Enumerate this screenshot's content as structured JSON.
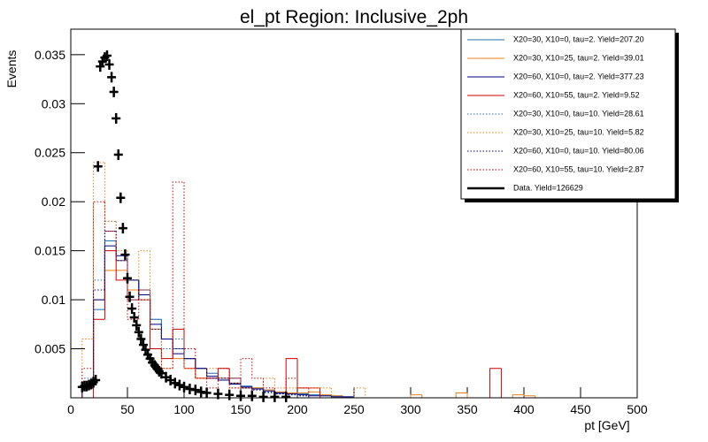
{
  "chart_data": {
    "type": "histogram",
    "title": "el_pt Region: Inclusive_2ph",
    "x_label": "pt [GeV]",
    "y_label": "Events",
    "xlim": [
      0,
      500
    ],
    "ylim": [
      0,
      0.0376
    ],
    "xticks": [
      0,
      50,
      100,
      150,
      200,
      250,
      300,
      350,
      400,
      450,
      500
    ],
    "yticks": [
      0.005,
      0.01,
      0.015,
      0.02,
      0.025,
      0.03,
      0.035
    ],
    "bins": [
      0,
      10,
      20,
      30,
      40,
      50,
      60,
      70,
      80,
      90,
      100,
      110,
      120,
      130,
      140,
      150,
      160,
      170,
      180,
      190,
      200,
      210,
      220,
      230,
      240,
      250,
      260,
      270,
      280,
      290,
      300,
      310,
      320,
      330,
      340,
      350,
      360,
      370,
      380,
      390,
      400,
      410,
      420,
      430,
      440,
      450,
      460,
      470,
      480,
      490,
      500
    ],
    "series": [
      {
        "name": "X20=30, X10=0, tau=2. Yield=207.20",
        "color": "#1f6fb0",
        "dashed": false,
        "values": [
          0,
          0.001,
          0.009,
          0.016,
          0.014,
          0.012,
          0.01,
          0.008,
          0.006,
          0.005,
          0.004,
          0.003,
          0.0025,
          0.002,
          0.0015,
          0.0012,
          0.001,
          0.0008,
          0.0006,
          0.0005,
          0.0004,
          0.0003,
          0.0002,
          0.0002,
          0.0001,
          0,
          0,
          0,
          0,
          0,
          0,
          0,
          0,
          0,
          0,
          0,
          0,
          0,
          0,
          0,
          0,
          0,
          0,
          0,
          0,
          0,
          0,
          0,
          0,
          0
        ]
      },
      {
        "name": "X20=30, X10=25, tau=2. Yield=39.01",
        "color": "#e8801a",
        "dashed": false,
        "values": [
          0,
          0.001,
          0.01,
          0.013,
          0.013,
          0.011,
          0.01,
          0.007,
          0.006,
          0.004,
          0.004,
          0.003,
          0.002,
          0.002,
          0.0015,
          0.001,
          0.001,
          0.0008,
          0.0006,
          0.0005,
          0.0005,
          0.0006,
          0.0003,
          0.0002,
          0,
          0,
          0,
          0,
          0,
          0,
          0.0003,
          0,
          0,
          0,
          0.0005,
          0,
          0,
          0,
          0,
          0.0003,
          0.0002,
          0,
          0,
          0,
          0,
          0,
          0,
          0,
          0,
          0
        ]
      },
      {
        "name": "X20=60, X10=0, tau=2. Yield=377.23",
        "color": "#000080",
        "dashed": false,
        "values": [
          0,
          0.001,
          0.01,
          0.0155,
          0.0145,
          0.012,
          0.0105,
          0.0075,
          0.006,
          0.0045,
          0.004,
          0.003,
          0.0022,
          0.0018,
          0.0014,
          0.0011,
          0.0009,
          0.0007,
          0.0005,
          0.0004,
          0.0003,
          0.0002,
          0.0002,
          0.0001,
          0.0001,
          0,
          0,
          0,
          0,
          0,
          0,
          0,
          0,
          0,
          0,
          0,
          0,
          0,
          0,
          0,
          0,
          0,
          0,
          0,
          0,
          0,
          0,
          0,
          0,
          0
        ]
      },
      {
        "name": "X20=60, X10=55, tau=2. Yield=9.52",
        "color": "#cc0000",
        "dashed": false,
        "values": [
          0,
          0,
          0.008,
          0.015,
          0.012,
          0.01,
          0.011,
          0.005,
          0.004,
          0.007,
          0.003,
          0.002,
          0.002,
          0.003,
          0.002,
          0.001,
          0,
          0,
          0,
          0.004,
          0.001,
          0.001,
          0,
          0,
          0,
          0,
          0,
          0,
          0,
          0,
          0,
          0,
          0,
          0,
          0,
          0,
          0,
          0.003,
          0,
          0,
          0,
          0,
          0,
          0,
          0,
          0,
          0,
          0,
          0,
          0
        ]
      },
      {
        "name": "X20=30, X10=0, tau=10. Yield=28.61",
        "color": "#1f6fb0",
        "dashed": true,
        "values": [
          0,
          0.002,
          0.012,
          0.018,
          0.014,
          0.01,
          0.011,
          0.008,
          0.005,
          0.006,
          0.004,
          0.003,
          0.002,
          0.002,
          0.002,
          0.001,
          0.001,
          0.0005,
          0.0004,
          0.0003,
          0.0002,
          0,
          0,
          0,
          0,
          0,
          0,
          0,
          0,
          0,
          0,
          0,
          0,
          0,
          0,
          0,
          0,
          0,
          0,
          0,
          0,
          0,
          0,
          0,
          0,
          0,
          0,
          0,
          0,
          0
        ]
      },
      {
        "name": "X20=30, X10=25, tau=10. Yield=5.82",
        "color": "#e8801a",
        "dashed": true,
        "values": [
          0,
          0.006,
          0.024,
          0.018,
          0.015,
          0.012,
          0.015,
          0.007,
          0.003,
          0.005,
          0.003,
          0.002,
          0.003,
          0.002,
          0.001,
          0.001,
          0.001,
          0.002,
          0.001,
          0.001,
          0.001,
          0.001,
          0.001,
          0,
          0,
          0.001,
          0,
          0,
          0,
          0,
          0,
          0,
          0,
          0,
          0,
          0,
          0,
          0,
          0,
          0,
          0,
          0,
          0,
          0,
          0,
          0,
          0,
          0,
          0,
          0
        ]
      },
      {
        "name": "X20=60, X10=0, tau=10. Yield=80.06",
        "color": "#000080",
        "dashed": true,
        "values": [
          0,
          0.001,
          0.011,
          0.017,
          0.014,
          0.012,
          0.01,
          0.007,
          0.006,
          0.005,
          0.004,
          0.003,
          0.002,
          0.002,
          0.0015,
          0.001,
          0.0008,
          0.0006,
          0.0004,
          0.0003,
          0.0002,
          0,
          0,
          0,
          0,
          0,
          0,
          0,
          0,
          0,
          0,
          0,
          0,
          0,
          0,
          0,
          0,
          0,
          0,
          0,
          0,
          0,
          0,
          0,
          0,
          0,
          0,
          0,
          0,
          0
        ]
      },
      {
        "name": "X20=60, X10=55, tau=10. Yield=2.87",
        "color": "#cc0000",
        "dashed": true,
        "values": [
          0,
          0.003,
          0.02,
          0.017,
          0.014,
          0.008,
          0.01,
          0.005,
          0.003,
          0.022,
          0.005,
          0.002,
          0.001,
          0.003,
          0.001,
          0.004,
          0.002,
          0.001,
          0,
          0.002,
          0.001,
          0,
          0,
          0,
          0,
          0,
          0,
          0,
          0,
          0,
          0,
          0,
          0,
          0,
          0,
          0,
          0,
          0,
          0,
          0,
          0,
          0,
          0,
          0,
          0,
          0,
          0,
          0,
          0,
          0
        ]
      }
    ],
    "data": {
      "name": "Data. Yield=126629",
      "color": "#000000",
      "x": [
        10,
        12,
        14,
        16,
        18,
        20,
        22,
        24,
        26,
        28,
        30,
        32,
        34,
        36,
        38,
        40,
        42,
        44,
        46,
        48,
        50,
        52,
        54,
        56,
        58,
        60,
        62,
        64,
        66,
        68,
        70,
        72,
        74,
        76,
        78,
        80,
        84,
        88,
        92,
        96,
        100,
        105,
        110,
        115,
        120,
        130,
        140,
        150,
        160,
        170,
        180,
        190
      ],
      "values": [
        0.0011,
        0.0012,
        0.0012,
        0.0013,
        0.0014,
        0.0016,
        0.0018,
        0.0236,
        0.0338,
        0.0343,
        0.0347,
        0.0349,
        0.034,
        0.0327,
        0.0312,
        0.0285,
        0.0248,
        0.0204,
        0.0173,
        0.0146,
        0.0122,
        0.0103,
        0.0091,
        0.0082,
        0.0074,
        0.0067,
        0.006,
        0.0054,
        0.0049,
        0.0044,
        0.004,
        0.0036,
        0.0033,
        0.003,
        0.0027,
        0.0025,
        0.0021,
        0.0018,
        0.0015,
        0.0013,
        0.0011,
        0.0009,
        0.0008,
        0.0006,
        0.0005,
        0.0004,
        0.0003,
        0.0002,
        0.0002,
        0.0001,
        0.0001,
        0.0001
      ]
    }
  }
}
